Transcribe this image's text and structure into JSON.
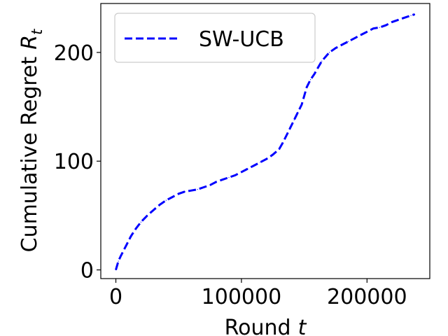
{
  "chart_data": {
    "type": "line",
    "title": "",
    "xlabel": "Round",
    "xlabel_var": "t",
    "ylabel": "Cumulative Regret",
    "ylabel_var": "R",
    "ylabel_sub": "t",
    "xlim": [
      -12000,
      250000
    ],
    "ylim": [
      -8,
      245
    ],
    "x_ticks": [
      0,
      100000,
      200000
    ],
    "x_tick_labels": [
      "0",
      "100000",
      "200000"
    ],
    "y_ticks": [
      0,
      100,
      200
    ],
    "y_tick_labels": [
      "0",
      "100",
      "200"
    ],
    "grid": false,
    "legend_position": "top-left",
    "series": [
      {
        "name": "SW-UCB",
        "color": "#0000ff",
        "line_style": "dashed",
        "x": [
          0,
          2000,
          4000,
          8000,
          12000,
          16000,
          20000,
          25000,
          30000,
          35000,
          40000,
          45000,
          50000,
          55000,
          60000,
          65000,
          70000,
          75000,
          80000,
          85000,
          90000,
          95000,
          100000,
          105000,
          110000,
          115000,
          120000,
          125000,
          130000,
          133000,
          136000,
          139000,
          142000,
          145000,
          148000,
          150000,
          152000,
          155000,
          158000,
          161000,
          164000,
          167000,
          170000,
          175000,
          180000,
          185000,
          190000,
          195000,
          200000,
          205000,
          210000,
          215000,
          220000,
          225000,
          230000,
          235000,
          238000
        ],
        "y": [
          0,
          8,
          13,
          22,
          31,
          38,
          44,
          50,
          55,
          60,
          64,
          67,
          70,
          72,
          73,
          74,
          76,
          78,
          81,
          83,
          85,
          87,
          90,
          93,
          96,
          99,
          102,
          106,
          111,
          117,
          124,
          131,
          138,
          145,
          152,
          160,
          168,
          175,
          180,
          186,
          192,
          196,
          200,
          204,
          207,
          210,
          213,
          216,
          219,
          222,
          223,
          225,
          228,
          230,
          232,
          234,
          235
        ]
      }
    ]
  }
}
